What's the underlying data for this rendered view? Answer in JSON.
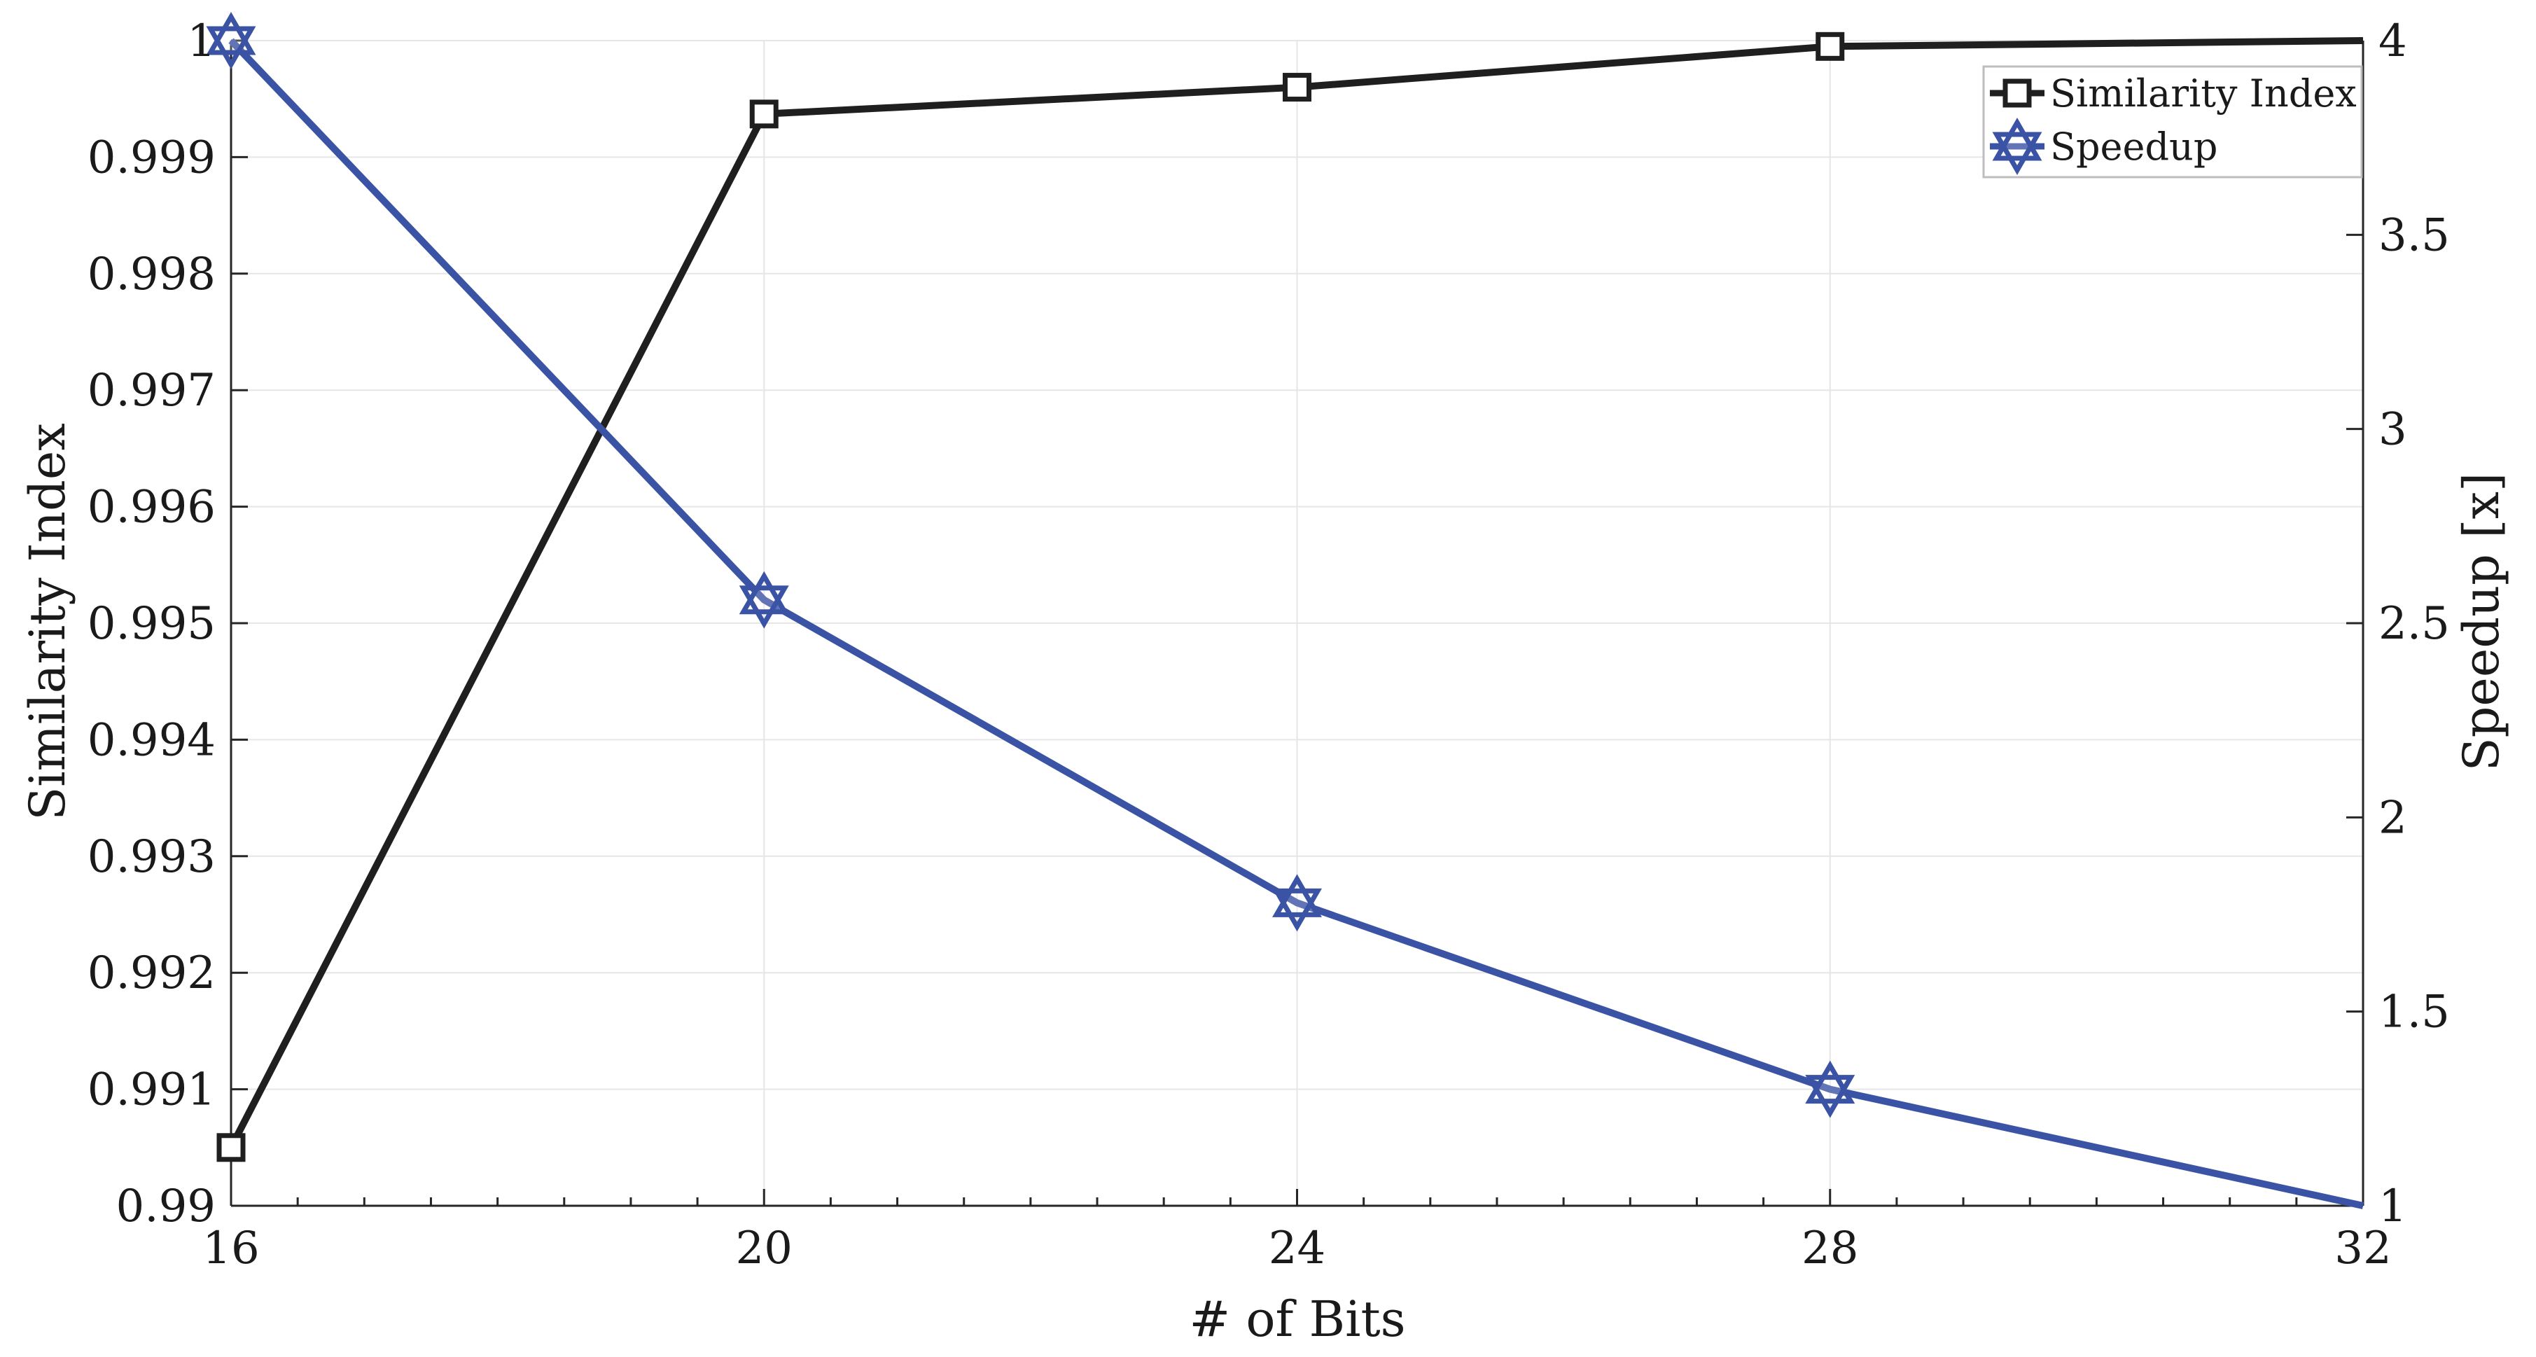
{
  "chart_data": {
    "type": "line",
    "xlabel": "# of Bits",
    "ylabel": "Similarity Index",
    "y2label": "Speedup [x]",
    "x": [
      16,
      20,
      24,
      28,
      32
    ],
    "xlim": [
      16,
      32
    ],
    "xticks": [
      "16",
      "20",
      "24",
      "28",
      "32"
    ],
    "ylim": [
      0.99,
      1
    ],
    "yticks": [
      "0.99",
      "0.991",
      "0.992",
      "0.993",
      "0.994",
      "0.995",
      "0.996",
      "0.997",
      "0.998",
      "0.999",
      "1"
    ],
    "y2lim": [
      1,
      4
    ],
    "y2ticks": [
      "1",
      "1.5",
      "2",
      "2.5",
      "3",
      "3.5",
      "4"
    ],
    "grid": true,
    "legend_position": "top-right",
    "series": [
      {
        "name": "Similarity Index",
        "axis": "left",
        "color": "#1f1f1f",
        "marker": "square",
        "values": [
          0.9905,
          0.99937,
          0.9996,
          0.99995,
          1.0
        ]
      },
      {
        "name": "Speedup",
        "axis": "right",
        "color": "#3a53a4",
        "marker": "hexagram",
        "values": [
          4.0,
          2.56,
          1.78,
          1.3,
          1.0
        ]
      }
    ]
  }
}
